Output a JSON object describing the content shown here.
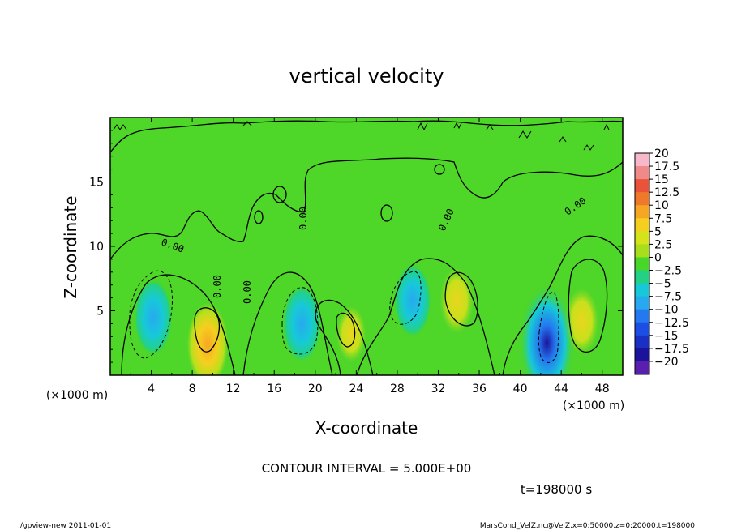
{
  "chart_data": {
    "type": "heatmap",
    "title": "vertical velocity",
    "xlabel": "X-coordinate",
    "ylabel": "Z-coordinate",
    "x_unit": "(×1000 m)",
    "y_unit": "(×1000 m)",
    "xlim": [
      0,
      50
    ],
    "ylim": [
      0,
      20
    ],
    "x_ticks": [
      "4",
      "8",
      "12",
      "16",
      "20",
      "24",
      "28",
      "32",
      "36",
      "40",
      "44",
      "48"
    ],
    "y_ticks": [
      "5",
      "10",
      "15"
    ],
    "colorbar_labels": [
      "20",
      "17.5",
      "15",
      "12.5",
      "10",
      "7.5",
      "5",
      "2.5",
      "0",
      "−2.5",
      "−5",
      "−7.5",
      "−10",
      "−12.5",
      "−15",
      "−17.5",
      "−20"
    ],
    "colorbar_colors": [
      "#f7b8c9",
      "#f08a8a",
      "#e8533a",
      "#f0782a",
      "#f5a623",
      "#f5cf1f",
      "#d6e31b",
      "#a9de1d",
      "#47d62a",
      "#23d185",
      "#17c9d8",
      "#27a9ef",
      "#2478f0",
      "#1c4ee6",
      "#1a2fc4",
      "#1c139b",
      "#5b1fb0"
    ],
    "features": [
      {
        "x": 9.5,
        "z": 2.4,
        "w": 7.5
      },
      {
        "x": 33.8,
        "z": 5.8,
        "w": 5.0
      },
      {
        "x": 46.0,
        "z": 4.2,
        "w": 5.0
      },
      {
        "x": 23.5,
        "z": 3.2,
        "w": 3.5
      },
      {
        "x": 4.2,
        "z": 4.5,
        "w": -6.5
      },
      {
        "x": 18.7,
        "z": 4.0,
        "w": -6.5
      },
      {
        "x": 29.5,
        "z": 5.8,
        "w": -6.0
      },
      {
        "x": 42.6,
        "z": 2.5,
        "w": -12.5
      }
    ],
    "contour_interval": "CONTOUR INTERVAL = 5.000E+00",
    "contour_labels": [
      "0.00",
      "0.00",
      "0.00",
      "0.00",
      "0.00",
      "0.00"
    ],
    "time": "t=198000 s"
  },
  "footer": {
    "left": "./gpview-new  2011-01-01",
    "right": "MarsCond_VelZ.nc@VelZ,x=0:50000,z=0:20000,t=198000"
  }
}
